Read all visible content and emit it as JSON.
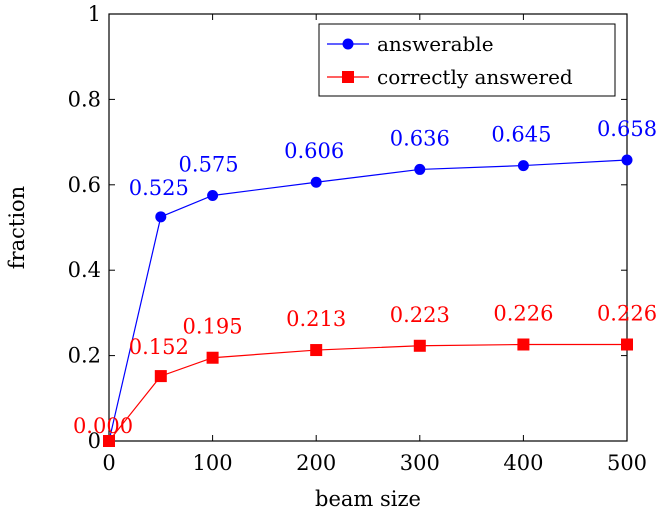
{
  "chart_data": {
    "type": "line",
    "xlabel": "beam size",
    "ylabel": "fraction",
    "xlim": [
      0,
      500
    ],
    "ylim": [
      0,
      1
    ],
    "x_ticks": [
      0,
      100,
      200,
      300,
      400,
      500
    ],
    "y_ticks": [
      0,
      0.2,
      0.4,
      0.6,
      0.8,
      1
    ],
    "y_tick_labels": [
      "0",
      "0.2",
      "0.4",
      "0.6",
      "0.8",
      "1"
    ],
    "grid": false,
    "legend_position": "top-right",
    "x": [
      0,
      50,
      100,
      200,
      300,
      400,
      500
    ],
    "series": [
      {
        "name": "answerable",
        "color": "#0000ff",
        "marker": "circle",
        "values": [
          0,
          0.525,
          0.575,
          0.606,
          0.636,
          0.645,
          0.658
        ],
        "labels": [
          "",
          "0.525",
          "0.575",
          "0.606",
          "0.636",
          "0.645",
          "0.658"
        ]
      },
      {
        "name": "correctly answered",
        "color": "#ff0000",
        "marker": "square",
        "values": [
          0,
          0.152,
          0.195,
          0.213,
          0.223,
          0.226,
          0.226
        ],
        "labels": [
          "0.000",
          "0.152",
          "0.195",
          "0.213",
          "0.223",
          "0.226",
          "0.226"
        ]
      }
    ]
  }
}
